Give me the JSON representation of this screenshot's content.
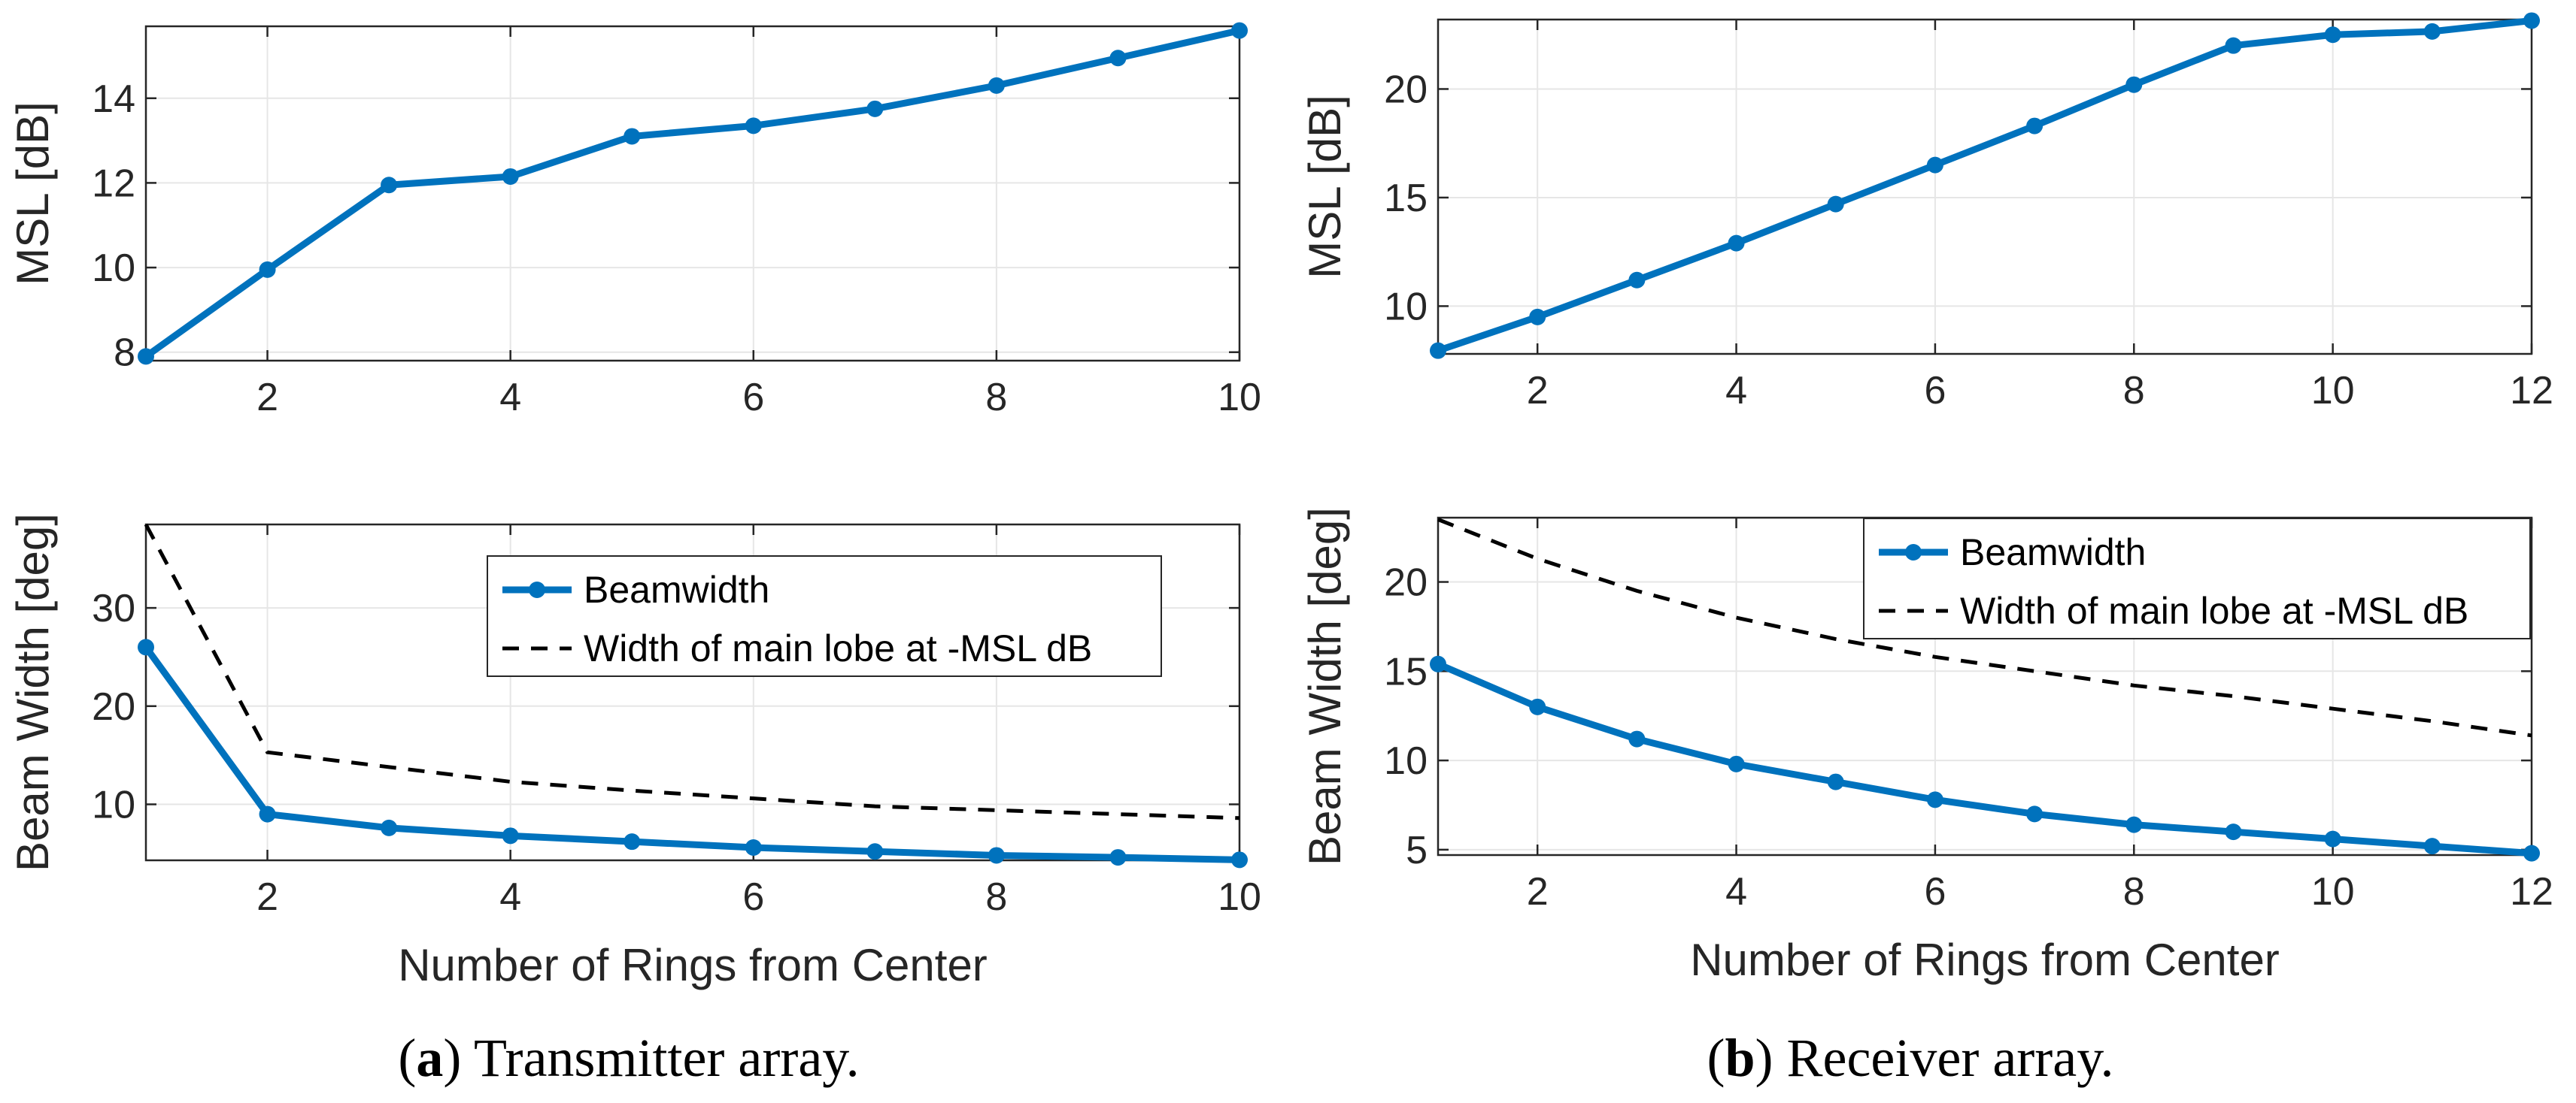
{
  "figure": {
    "captions": [
      {
        "prefix": "(",
        "letter": "a",
        "suffix": ") Transmitter array."
      },
      {
        "prefix": "(",
        "letter": "b",
        "suffix": ") Receiver array."
      }
    ]
  },
  "colors": {
    "series_blue": "#0072BD",
    "dashed_black": "#000000",
    "grid": "#e6e6e6",
    "axis": "#262626"
  },
  "chart_data": [
    {
      "id": "a-top",
      "type": "line",
      "title": "",
      "xlabel": "",
      "ylabel": "MSL [dB]",
      "xlim": [
        1,
        10
      ],
      "ylim": [
        7.8,
        15.7
      ],
      "xticks": [
        2,
        4,
        6,
        8,
        10
      ],
      "yticks": [
        8,
        10,
        12,
        14
      ],
      "grid": true,
      "series": [
        {
          "name": "MSL",
          "style": "solid-marker",
          "x": [
            1,
            2,
            3,
            4,
            5,
            6,
            7,
            8,
            9,
            10
          ],
          "y": [
            7.9,
            9.95,
            11.95,
            12.15,
            13.1,
            13.35,
            13.75,
            14.3,
            14.95,
            15.6
          ]
        }
      ],
      "legend": null
    },
    {
      "id": "b-top",
      "type": "line",
      "title": "",
      "xlabel": "",
      "ylabel": "MSL [dB]",
      "xlim": [
        1,
        12
      ],
      "ylim": [
        7.8,
        23.2
      ],
      "xticks": [
        2,
        4,
        6,
        8,
        10,
        12
      ],
      "yticks": [
        10,
        15,
        20
      ],
      "grid": true,
      "series": [
        {
          "name": "MSL",
          "style": "solid-marker",
          "x": [
            1,
            2,
            3,
            4,
            5,
            6,
            7,
            8,
            9,
            10,
            11,
            12
          ],
          "y": [
            7.95,
            9.5,
            11.2,
            12.9,
            14.7,
            16.5,
            18.3,
            20.2,
            22.0,
            22.5,
            22.65,
            23.15
          ]
        }
      ],
      "legend": null
    },
    {
      "id": "a-bottom",
      "type": "line",
      "title": "",
      "xlabel": "Number of Rings from Center",
      "ylabel": "Beam Width [deg]",
      "xlim": [
        1,
        10
      ],
      "ylim": [
        4.3,
        38.5
      ],
      "xticks": [
        2,
        4,
        6,
        8,
        10
      ],
      "yticks": [
        10,
        20,
        30
      ],
      "grid": true,
      "series": [
        {
          "name": "Beamwidth",
          "style": "solid-marker",
          "x": [
            1,
            2,
            3,
            4,
            5,
            6,
            7,
            8,
            9,
            10
          ],
          "y": [
            26.0,
            9.0,
            7.6,
            6.8,
            6.2,
            5.6,
            5.2,
            4.8,
            4.6,
            4.35
          ]
        },
        {
          "name": "Width of main lobe at -MSL dB",
          "style": "dashed",
          "x": [
            1,
            2,
            3,
            4,
            5,
            6,
            7,
            8,
            9,
            10
          ],
          "y": [
            38.5,
            15.3,
            13.8,
            12.3,
            11.4,
            10.6,
            9.8,
            9.4,
            9.0,
            8.6
          ]
        }
      ],
      "legend": "top-right"
    },
    {
      "id": "b-bottom",
      "type": "line",
      "title": "",
      "xlabel": "Number of Rings from Center",
      "ylabel": "Beam Width [deg]",
      "xlim": [
        1,
        12
      ],
      "ylim": [
        4.7,
        23.6
      ],
      "xticks": [
        2,
        4,
        6,
        8,
        10,
        12
      ],
      "yticks": [
        5,
        10,
        15,
        20
      ],
      "grid": true,
      "series": [
        {
          "name": "Beamwidth",
          "style": "solid-marker",
          "x": [
            1,
            2,
            3,
            4,
            5,
            6,
            7,
            8,
            9,
            10,
            11,
            12
          ],
          "y": [
            15.4,
            13.0,
            11.2,
            9.8,
            8.8,
            7.8,
            7.0,
            6.4,
            6.0,
            5.6,
            5.2,
            4.8
          ]
        },
        {
          "name": "Width of main lobe at -MSL dB",
          "style": "dashed",
          "x": [
            1,
            2,
            3,
            4,
            5,
            6,
            7,
            8,
            9,
            10,
            11,
            12
          ],
          "y": [
            23.5,
            21.3,
            19.5,
            18.0,
            16.8,
            15.8,
            15.0,
            14.2,
            13.6,
            12.9,
            12.2,
            11.4
          ]
        }
      ],
      "legend": "top-right"
    }
  ]
}
